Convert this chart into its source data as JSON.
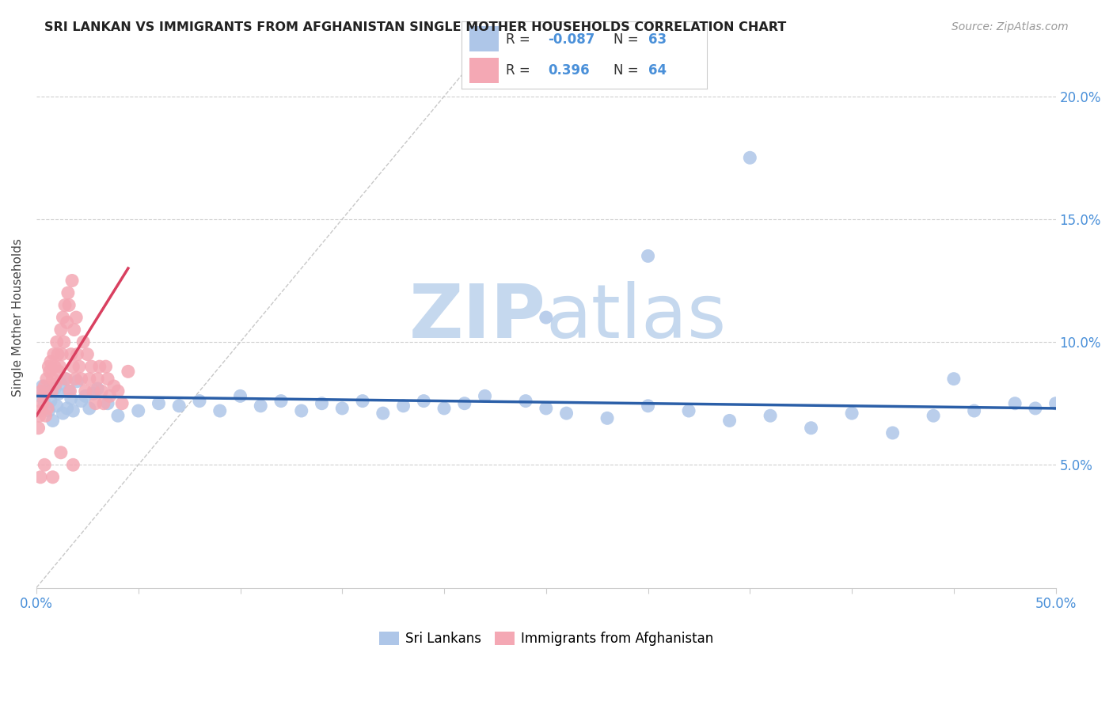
{
  "title": "SRI LANKAN VS IMMIGRANTS FROM AFGHANISTAN SINGLE MOTHER HOUSEHOLDS CORRELATION CHART",
  "source": "Source: ZipAtlas.com",
  "ylabel": "Single Mother Households",
  "legend_labels": [
    "Sri Lankans",
    "Immigrants from Afghanistan"
  ],
  "R_sri": -0.087,
  "N_sri": 63,
  "R_afg": 0.396,
  "N_afg": 64,
  "xlim": [
    0.0,
    50.0
  ],
  "ylim": [
    0.0,
    22.0
  ],
  "ytick_vals": [
    5,
    10,
    15,
    20
  ],
  "color_sri": "#aec6e8",
  "color_afg": "#f4a8b4",
  "line_color_sri": "#2b5fa8",
  "line_color_afg": "#d94060",
  "diagonal_color": "#c8c8c8",
  "background_color": "#ffffff",
  "watermark_color": "#c5d8ee",
  "grid_color": "#d0d0d0",
  "tick_label_color": "#4a90d9",
  "title_color": "#222222",
  "source_color": "#999999",
  "ylabel_color": "#444444",
  "sri_x": [
    0.2,
    0.3,
    0.4,
    0.5,
    0.6,
    0.7,
    0.8,
    0.9,
    1.0,
    1.1,
    1.2,
    1.3,
    1.4,
    1.5,
    1.6,
    1.7,
    1.8,
    2.0,
    2.2,
    2.4,
    2.6,
    2.8,
    3.0,
    3.5,
    4.0,
    5.0,
    6.0,
    7.0,
    8.0,
    9.0,
    10.0,
    11.0,
    12.0,
    13.0,
    14.0,
    15.0,
    16.0,
    17.0,
    18.0,
    19.0,
    20.0,
    21.0,
    22.0,
    24.0,
    25.0,
    26.0,
    28.0,
    30.0,
    32.0,
    34.0,
    36.0,
    38.0,
    40.0,
    42.0,
    44.0,
    46.0,
    48.0,
    49.0,
    25.0,
    30.0,
    35.0,
    45.0,
    50.0
  ],
  "sri_y": [
    7.8,
    8.2,
    7.5,
    8.0,
    7.2,
    7.6,
    6.8,
    8.1,
    7.4,
    7.9,
    8.3,
    7.1,
    8.5,
    7.3,
    8.0,
    7.7,
    7.2,
    8.4,
    7.6,
    7.8,
    7.3,
    7.9,
    8.1,
    7.5,
    7.0,
    7.2,
    7.5,
    7.4,
    7.6,
    7.2,
    7.8,
    7.4,
    7.6,
    7.2,
    7.5,
    7.3,
    7.6,
    7.1,
    7.4,
    7.6,
    7.3,
    7.5,
    7.8,
    7.6,
    7.3,
    7.1,
    6.9,
    7.4,
    7.2,
    6.8,
    7.0,
    6.5,
    7.1,
    6.3,
    7.0,
    7.2,
    7.5,
    7.3,
    11.0,
    13.5,
    17.5,
    8.5,
    7.5
  ],
  "afg_x": [
    0.1,
    0.15,
    0.2,
    0.25,
    0.3,
    0.35,
    0.4,
    0.45,
    0.5,
    0.55,
    0.6,
    0.65,
    0.7,
    0.75,
    0.8,
    0.85,
    0.9,
    0.95,
    1.0,
    1.05,
    1.1,
    1.15,
    1.2,
    1.25,
    1.3,
    1.35,
    1.4,
    1.45,
    1.5,
    1.55,
    1.6,
    1.65,
    1.7,
    1.75,
    1.8,
    1.85,
    1.9,
    1.95,
    2.0,
    2.1,
    2.2,
    2.3,
    2.4,
    2.5,
    2.6,
    2.7,
    2.8,
    2.9,
    3.0,
    3.1,
    3.2,
    3.3,
    3.4,
    3.5,
    3.6,
    3.8,
    4.0,
    4.2,
    4.5,
    0.2,
    0.4,
    0.8,
    1.2,
    1.8
  ],
  "afg_y": [
    6.5,
    7.0,
    7.2,
    8.0,
    7.5,
    7.8,
    8.2,
    7.0,
    8.5,
    7.3,
    9.0,
    8.8,
    9.2,
    8.0,
    8.5,
    9.5,
    9.0,
    8.3,
    10.0,
    9.5,
    8.8,
    9.0,
    10.5,
    9.5,
    11.0,
    10.0,
    11.5,
    8.5,
    10.8,
    12.0,
    11.5,
    8.0,
    9.5,
    12.5,
    9.0,
    10.5,
    8.5,
    11.0,
    9.5,
    9.0,
    8.5,
    10.0,
    8.0,
    9.5,
    8.5,
    9.0,
    8.0,
    7.5,
    8.5,
    9.0,
    8.0,
    7.5,
    9.0,
    8.5,
    7.8,
    8.2,
    8.0,
    7.5,
    8.8,
    4.5,
    5.0,
    4.5,
    5.5,
    5.0
  ]
}
